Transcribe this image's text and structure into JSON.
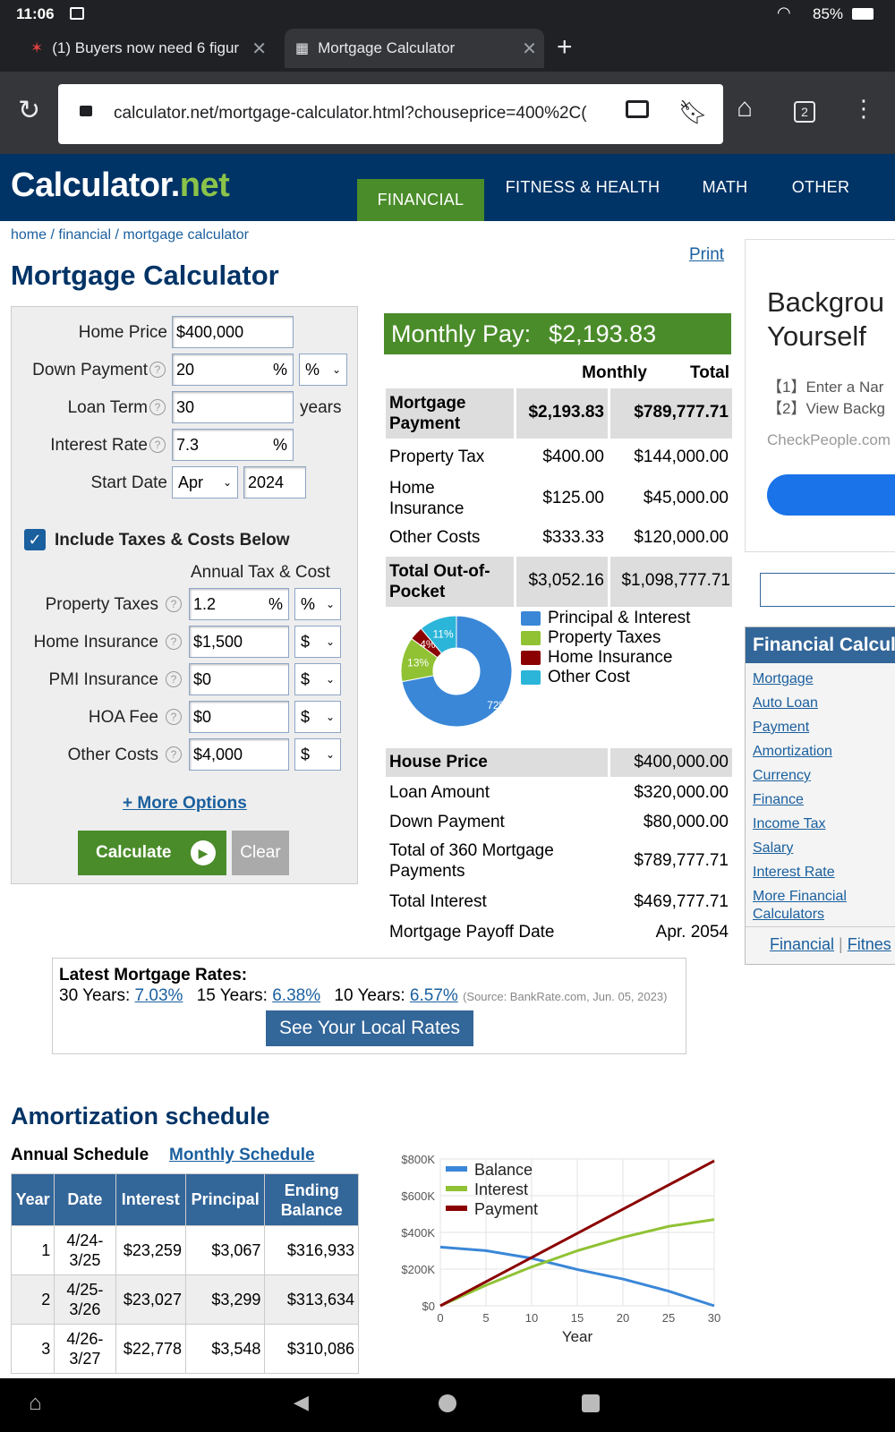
{
  "status": {
    "time": "11:06",
    "battery": "85%"
  },
  "tabs": [
    {
      "title": "(1) Buyers now need 6 figur"
    },
    {
      "title": "Mortgage Calculator"
    }
  ],
  "url": "calculator.net/mortgage-calculator.html?chouseprice=400%2C(",
  "tab_count": "2",
  "site": {
    "logo_main": "Calculator",
    "logo_dot": ".",
    "logo_net": "net",
    "nav": [
      "FINANCIAL",
      "FITNESS & HEALTH",
      "MATH",
      "OTHER"
    ]
  },
  "breadcrumb": {
    "home": "home",
    "sep1": " / ",
    "financial": "financial",
    "sep2": " / ",
    "current": "mortgage calculator"
  },
  "page_title": "Mortgage Calculator",
  "print_label": "Print",
  "form": {
    "home_price_label": "Home Price",
    "home_price": "$400,000",
    "down_payment_label": "Down Payment",
    "down_payment": "20",
    "down_payment_unit": "%",
    "down_payment_select": "%",
    "loan_term_label": "Loan Term",
    "loan_term": "30",
    "loan_term_unit": "years",
    "interest_rate_label": "Interest Rate",
    "interest_rate": "7.3",
    "interest_rate_unit": "%",
    "start_date_label": "Start Date",
    "start_month": "Apr",
    "start_year": "2024",
    "include_taxes_label": "Include Taxes & Costs Below",
    "annual_header": "Annual Tax & Cost",
    "property_taxes_label": "Property Taxes",
    "property_taxes": "1.2",
    "property_taxes_unit": "%",
    "property_taxes_select": "%",
    "home_insurance_label": "Home Insurance",
    "home_insurance": "$1,500",
    "home_insurance_select": "$",
    "pmi_label": "PMI Insurance",
    "pmi": "$0",
    "pmi_select": "$",
    "hoa_label": "HOA Fee",
    "hoa": "$0",
    "hoa_select": "$",
    "other_costs_label": "Other Costs",
    "other_costs": "$4,000",
    "other_costs_select": "$",
    "more_options": "+ More Options",
    "calculate": "Calculate",
    "clear": "Clear"
  },
  "results": {
    "monthly_pay_label": "Monthly Pay:",
    "monthly_pay": "$2,193.83",
    "col_monthly": "Monthly",
    "col_total": "Total",
    "rows": [
      {
        "label": "Mortgage Payment",
        "monthly": "$2,193.83",
        "total": "$789,777.71"
      },
      {
        "label": "Property Tax",
        "monthly": "$400.00",
        "total": "$144,000.00"
      },
      {
        "label": "Home Insurance",
        "monthly": "$125.00",
        "total": "$45,000.00"
      },
      {
        "label": "Other Costs",
        "monthly": "$333.33",
        "total": "$120,000.00"
      },
      {
        "label": "Total Out-of-Pocket",
        "monthly": "$3,052.16",
        "total": "$1,098,777.71"
      }
    ],
    "summary": [
      {
        "label": "House Price",
        "value": "$400,000.00"
      },
      {
        "label": "Loan Amount",
        "value": "$320,000.00"
      },
      {
        "label": "Down Payment",
        "value": "$80,000.00"
      },
      {
        "label": "Total of 360 Mortgage Payments",
        "value": "$789,777.71"
      },
      {
        "label": "Total Interest",
        "value": "$469,777.71"
      },
      {
        "label": "Mortgage Payoff Date",
        "value": "Apr. 2054"
      }
    ]
  },
  "rates": {
    "title": "Latest Mortgage Rates:",
    "y30_label": "30 Years:",
    "y30": "7.03%",
    "y15_label": "15 Years:",
    "y15": "6.38%",
    "y10_label": "10 Years:",
    "y10": "6.57%",
    "source": "(Source: BankRate.com, Jun. 05, 2023)",
    "button": "See Your Local Rates"
  },
  "sidebar": {
    "ad_title_1": "Backgrou",
    "ad_title_2": "Yourself",
    "ad_line1": "【1】Enter a Nar",
    "ad_line2": "【2】View Backg",
    "ad_site": "CheckPeople.com",
    "fin_head": "Financial Calcul",
    "links": [
      "Mortgage",
      "Auto Loan",
      "Payment",
      "Amortization",
      "Currency",
      "Finance",
      "Income Tax",
      "Salary",
      "Interest Rate",
      "More Financial Calculators"
    ],
    "foot_financial": "Financial",
    "foot_sep": " | ",
    "foot_fitness": "Fitnes"
  },
  "amort": {
    "title": "Amortization schedule",
    "annual": "Annual Schedule",
    "monthly": "Monthly Schedule",
    "headers": [
      "Year",
      "Date",
      "Interest",
      "Principal",
      "Ending Balance"
    ],
    "rows": [
      {
        "year": "1",
        "date": "4/24-3/25",
        "interest": "$23,259",
        "principal": "$3,067",
        "balance": "$316,933"
      },
      {
        "year": "2",
        "date": "4/25-3/26",
        "interest": "$23,027",
        "principal": "$3,299",
        "balance": "$313,634"
      },
      {
        "year": "3",
        "date": "4/26-3/27",
        "interest": "$22,778",
        "principal": "$3,548",
        "balance": "$310,086"
      }
    ]
  },
  "chart_data": [
    {
      "type": "pie",
      "categories": [
        "Principal & Interest",
        "Property Taxes",
        "Home Insurance",
        "Other Cost"
      ],
      "values": [
        72,
        13,
        4,
        11
      ],
      "slice_labels": [
        "72%",
        "13%",
        "4%",
        "11%"
      ],
      "colors": [
        "#3a87d8",
        "#90c234",
        "#8b0000",
        "#2bb5d8"
      ],
      "legend": "right"
    },
    {
      "type": "line",
      "x": [
        0,
        5,
        10,
        15,
        20,
        25,
        30
      ],
      "xlabel": "Year",
      "ylabel": "",
      "xlim": [
        0,
        30
      ],
      "ylim": [
        0,
        800000
      ],
      "yticks": [
        "$0",
        "$200K",
        "$400K",
        "$600K",
        "$800K"
      ],
      "xticks": [
        "0",
        "5",
        "10",
        "15",
        "20",
        "25",
        "30"
      ],
      "legend": "top-left",
      "series": [
        {
          "name": "Balance",
          "color": "#3a87d8",
          "values": [
            320000,
            300500,
            259000,
            198000,
            146000,
            80000,
            0
          ]
        },
        {
          "name": "Interest",
          "color": "#90c234",
          "values": [
            0,
            112000,
            212000,
            300000,
            373000,
            433000,
            470000
          ]
        },
        {
          "name": "Payment",
          "color": "#8b0000",
          "values": [
            0,
            131600,
            263300,
            394900,
            526500,
            658100,
            789800
          ]
        }
      ]
    }
  ]
}
